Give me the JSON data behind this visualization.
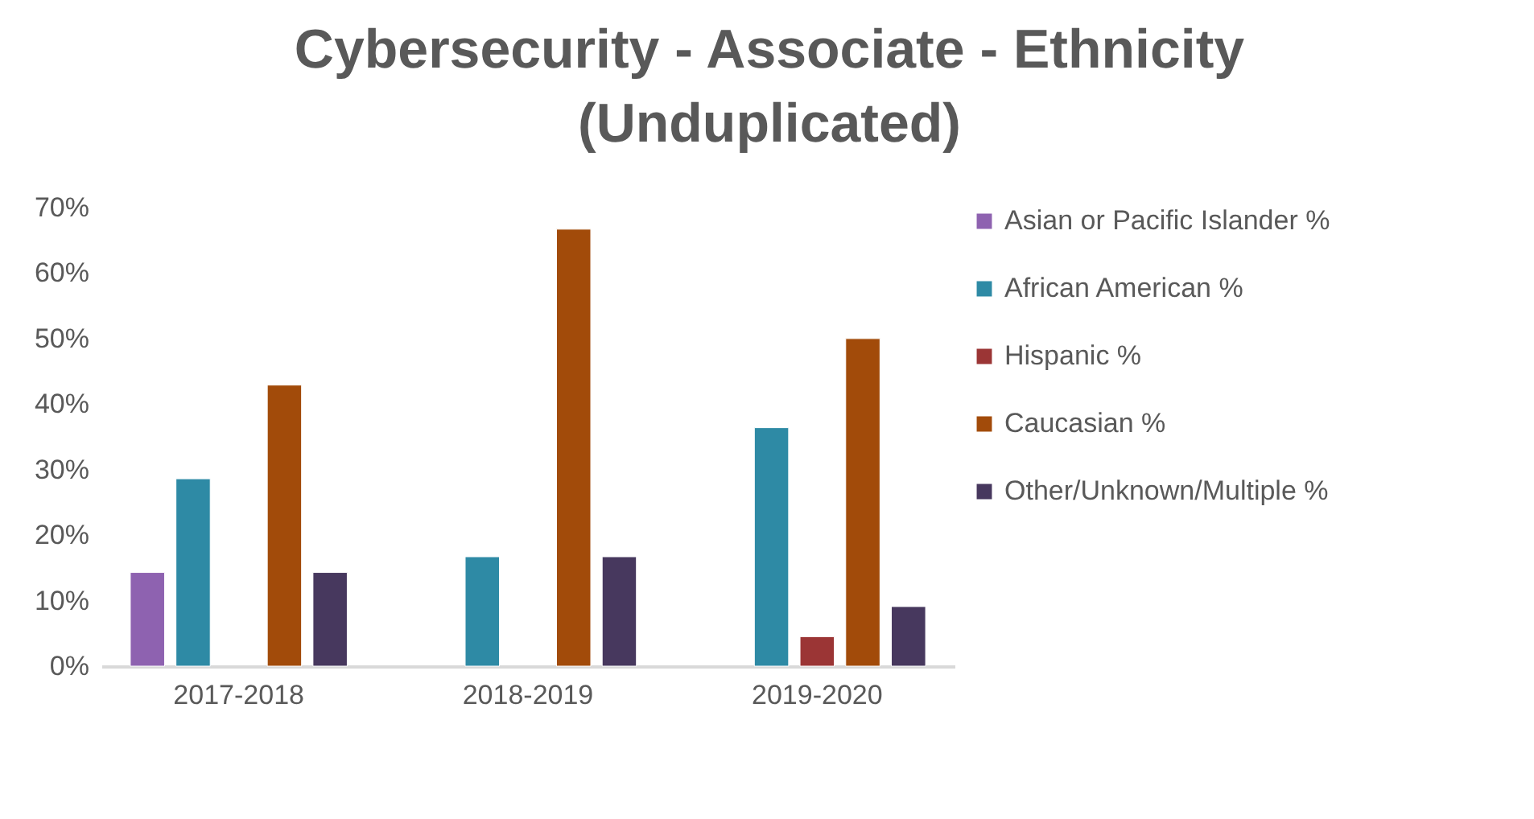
{
  "chart_data": {
    "type": "bar",
    "title": [
      "Cybersecurity - Associate - Ethnicity",
      "(Unduplicated)"
    ],
    "categories": [
      "2017-2018",
      "2018-2019",
      "2019-2020"
    ],
    "series": [
      {
        "name": "Asian or Pacific Islander %",
        "color": "#8e62b0",
        "values": [
          14.3,
          null,
          null
        ]
      },
      {
        "name": "African American %",
        "color": "#2e8aa5",
        "values": [
          28.6,
          16.7,
          36.4
        ]
      },
      {
        "name": "Hispanic %",
        "color": "#9b3535",
        "values": [
          null,
          null,
          4.5
        ]
      },
      {
        "name": "Caucasian %",
        "color": "#a24b0a",
        "values": [
          42.9,
          66.7,
          50
        ]
      },
      {
        "name": "Other/Unknown/Multiple %",
        "color": "#47385e",
        "values": [
          14.3,
          16.7,
          9.1
        ]
      }
    ],
    "ylim": [
      0,
      70
    ],
    "yticks": [
      {
        "value": 0,
        "label": "0%"
      },
      {
        "value": 10,
        "label": "10%"
      },
      {
        "value": 20,
        "label": "20%"
      },
      {
        "value": 30,
        "label": "30%"
      },
      {
        "value": 40,
        "label": "40%"
      },
      {
        "value": 50,
        "label": "50%"
      },
      {
        "value": 60,
        "label": "60%"
      },
      {
        "value": 70,
        "label": "70%"
      }
    ],
    "grid": false,
    "legend": "right"
  }
}
